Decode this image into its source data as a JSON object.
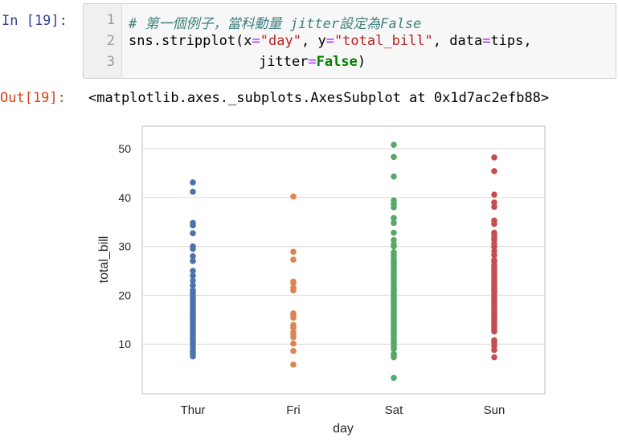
{
  "cell_in": {
    "prompt": "In [19]:",
    "line_numbers": [
      "1",
      "2",
      "3"
    ],
    "line1_comment": "# 第一個例子，當科動量 jitter設定為False",
    "line2_fn": "sns.stripplot(x",
    "line2_eq1": "=",
    "line2_str1": "\"day\"",
    "line2_mid": ", y",
    "line2_eq2": "=",
    "line2_str2": "\"total_bill\"",
    "line2_mid2": ", data",
    "line2_eq3": "=",
    "line2_end": "tips,",
    "line3_arg": "jitter",
    "line3_eq": "=",
    "line3_kw": "False",
    "line3_end": ")"
  },
  "cell_out": {
    "prompt": "Out[19]:",
    "text": "<matplotlib.axes._subplots.AxesSubplot at 0x1d7ac2efb88>"
  },
  "chart_data": {
    "type": "scatter",
    "title": "",
    "xlabel": "day",
    "ylabel": "total_bill",
    "categories": [
      "Thur",
      "Fri",
      "Sat",
      "Sun"
    ],
    "ylim": [
      0,
      52.5
    ],
    "yticks": [
      10,
      20,
      30,
      40,
      50
    ],
    "grid": true,
    "colors": {
      "Thur": "#4c72b0",
      "Fri": "#dd8452",
      "Sat": "#55a868",
      "Sun": "#c44e52"
    },
    "series": [
      {
        "category": "Thur",
        "values": [
          7.5,
          8.0,
          8.5,
          9.0,
          9.6,
          10.1,
          10.6,
          11.0,
          11.4,
          11.9,
          12.3,
          12.7,
          13.0,
          13.4,
          13.8,
          14.3,
          14.7,
          15.0,
          15.4,
          15.8,
          16.2,
          16.5,
          16.9,
          17.3,
          17.8,
          18.2,
          18.6,
          19.0,
          19.4,
          19.8,
          20.3,
          20.7,
          21.0,
          22.0,
          23.0,
          24.0,
          25.0,
          27.0,
          28.0,
          29.5,
          30.0,
          32.7,
          34.3,
          34.8,
          41.2,
          43.1
        ]
      },
      {
        "category": "Fri",
        "values": [
          5.8,
          8.6,
          10.1,
          11.4,
          12.0,
          12.5,
          13.4,
          13.9,
          15.4,
          15.9,
          16.3,
          21.0,
          21.5,
          22.5,
          22.8,
          27.3,
          28.9,
          40.2
        ]
      },
      {
        "category": "Sat",
        "values": [
          3.1,
          7.3,
          7.7,
          8.0,
          9.0,
          9.5,
          10.0,
          10.3,
          10.7,
          11.0,
          11.4,
          11.8,
          12.2,
          12.6,
          13.0,
          13.4,
          13.8,
          14.2,
          14.6,
          15.0,
          15.4,
          15.8,
          16.2,
          16.6,
          17.0,
          17.4,
          17.8,
          18.2,
          18.6,
          19.0,
          19.4,
          19.8,
          20.2,
          20.6,
          21.0,
          21.4,
          22.0,
          22.6,
          23.2,
          23.8,
          24.3,
          24.8,
          25.3,
          25.9,
          26.4,
          26.9,
          27.5,
          28.2,
          28.8,
          30.0,
          30.4,
          31.3,
          32.8,
          34.8,
          35.8,
          38.0,
          38.7,
          39.4,
          44.3,
          48.3,
          50.8
        ]
      },
      {
        "category": "Sun",
        "values": [
          7.3,
          8.8,
          9.6,
          10.3,
          10.8,
          12.6,
          13.0,
          13.4,
          13.9,
          14.3,
          14.8,
          15.0,
          15.4,
          15.9,
          16.3,
          16.6,
          17.0,
          17.5,
          17.9,
          18.4,
          18.7,
          19.1,
          19.5,
          20.1,
          20.6,
          20.9,
          21.3,
          21.7,
          22.1,
          22.6,
          23.0,
          23.6,
          24.0,
          24.5,
          25.0,
          25.3,
          25.7,
          26.2,
          26.9,
          27.2,
          28.2,
          29.0,
          29.9,
          30.5,
          31.3,
          31.7,
          32.4,
          32.8,
          34.6,
          35.3,
          38.1,
          39.0,
          40.6,
          45.4,
          48.2
        ]
      }
    ]
  }
}
